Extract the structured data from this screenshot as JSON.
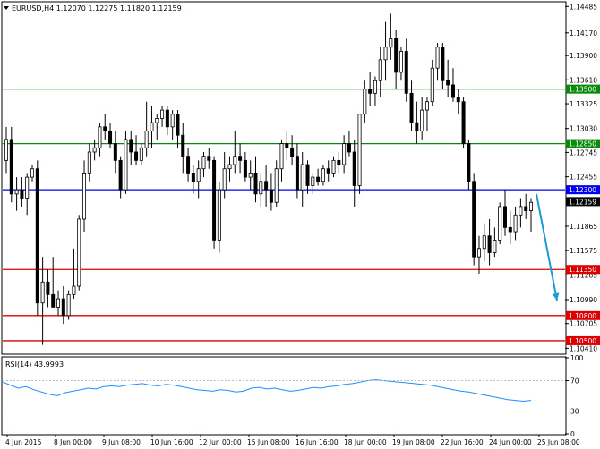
{
  "header": {
    "symbol_line": "EURUSD,H4  1.12070 1.12275 1.11820 1.12159"
  },
  "rsi_header": "RSI(14) 43.9993",
  "chart_data": {
    "type": "candlestick",
    "price_axis": {
      "ticks": [
        "1.14485",
        "1.14170",
        "1.13900",
        "1.13610",
        "1.13325",
        "1.13030",
        "1.12745",
        "1.12455",
        "1.11865",
        "1.11575",
        "1.11285",
        "1.10990",
        "1.10705",
        "1.10410"
      ],
      "ylim": [
        1.1035,
        1.1452
      ]
    },
    "levels": [
      {
        "value": 1.135,
        "label": "1.13500",
        "color": "#0a8a0a"
      },
      {
        "value": 1.1285,
        "label": "1.12850",
        "color": "#0a8a0a"
      },
      {
        "value": 1.123,
        "label": "1.12300",
        "color": "#0000ee"
      },
      {
        "value": 1.1135,
        "label": "1.11350",
        "color": "#dd0000"
      },
      {
        "value": 1.108,
        "label": "1.10800",
        "color": "#dd0000"
      },
      {
        "value": 1.105,
        "label": "1.10500",
        "color": "#dd0000"
      }
    ],
    "current_price": {
      "value": 1.12159,
      "label": "1.12159",
      "color": "#000000"
    },
    "forecast_arrow": {
      "from": 1.1225,
      "to": 1.1098,
      "color": "#1a9ad6"
    },
    "x_labels": [
      "4 Jun 2015",
      "8 Jun 00:00",
      "9 Jun 08:00",
      "10 Jun 16:00",
      "12 Jun 00:00",
      "15 Jun 08:00",
      "16 Jun 16:00",
      "18 Jun 00:00",
      "19 Jun 08:00",
      "22 Jun 16:00",
      "24 Jun 00:00",
      "25 Jun 08:00"
    ],
    "candles": [
      [
        1.1265,
        1.1305,
        1.125,
        1.129
      ],
      [
        1.129,
        1.1305,
        1.1215,
        1.1225
      ],
      [
        1.1225,
        1.1245,
        1.1205,
        1.123
      ],
      [
        1.123,
        1.1245,
        1.121,
        1.122
      ],
      [
        1.122,
        1.125,
        1.12,
        1.1245
      ],
      [
        1.1245,
        1.126,
        1.124,
        1.1255
      ],
      [
        1.1255,
        1.1265,
        1.108,
        1.1095
      ],
      [
        1.1095,
        1.115,
        1.1045,
        1.112
      ],
      [
        1.112,
        1.1135,
        1.109,
        1.1105
      ],
      [
        1.1105,
        1.115,
        1.109,
        1.109
      ],
      [
        1.109,
        1.111,
        1.108,
        1.11
      ],
      [
        1.11,
        1.1115,
        1.107,
        1.108
      ],
      [
        1.108,
        1.111,
        1.1075,
        1.1105
      ],
      [
        1.1105,
        1.116,
        1.11,
        1.1115
      ],
      [
        1.1115,
        1.12,
        1.111,
        1.1195
      ],
      [
        1.1195,
        1.1265,
        1.118,
        1.125
      ],
      [
        1.125,
        1.1285,
        1.124,
        1.1275
      ],
      [
        1.1275,
        1.129,
        1.1265,
        1.128
      ],
      [
        1.128,
        1.131,
        1.127,
        1.1305
      ],
      [
        1.1305,
        1.132,
        1.129,
        1.13
      ],
      [
        1.13,
        1.131,
        1.128,
        1.1285
      ],
      [
        1.1285,
        1.13,
        1.125,
        1.1265
      ],
      [
        1.1265,
        1.127,
        1.122,
        1.123
      ],
      [
        1.123,
        1.13,
        1.1225,
        1.129
      ],
      [
        1.129,
        1.13,
        1.126,
        1.1275
      ],
      [
        1.1275,
        1.1295,
        1.126,
        1.1265
      ],
      [
        1.1265,
        1.1285,
        1.126,
        1.128
      ],
      [
        1.128,
        1.1335,
        1.127,
        1.13
      ],
      [
        1.13,
        1.133,
        1.128,
        1.131
      ],
      [
        1.131,
        1.132,
        1.129,
        1.1315
      ],
      [
        1.1315,
        1.133,
        1.1305,
        1.1325
      ],
      [
        1.1325,
        1.133,
        1.1295,
        1.1305
      ],
      [
        1.1305,
        1.1325,
        1.129,
        1.132
      ],
      [
        1.132,
        1.1325,
        1.128,
        1.1295
      ],
      [
        1.1295,
        1.131,
        1.125,
        1.127
      ],
      [
        1.127,
        1.128,
        1.124,
        1.125
      ],
      [
        1.125,
        1.126,
        1.1225,
        1.124
      ],
      [
        1.124,
        1.1265,
        1.122,
        1.1255
      ],
      [
        1.1255,
        1.1275,
        1.1245,
        1.127
      ],
      [
        1.127,
        1.128,
        1.1255,
        1.1265
      ],
      [
        1.1265,
        1.127,
        1.116,
        1.117
      ],
      [
        1.117,
        1.124,
        1.1155,
        1.123
      ],
      [
        1.123,
        1.1275,
        1.122,
        1.1255
      ],
      [
        1.1255,
        1.127,
        1.124,
        1.126
      ],
      [
        1.126,
        1.13,
        1.125,
        1.127
      ],
      [
        1.127,
        1.1285,
        1.125,
        1.1265
      ],
      [
        1.1265,
        1.1275,
        1.124,
        1.1245
      ],
      [
        1.1245,
        1.1265,
        1.123,
        1.125
      ],
      [
        1.125,
        1.127,
        1.1215,
        1.1225
      ],
      [
        1.1225,
        1.125,
        1.121,
        1.124
      ],
      [
        1.124,
        1.126,
        1.121,
        1.123
      ],
      [
        1.123,
        1.125,
        1.1205,
        1.1215
      ],
      [
        1.1215,
        1.1265,
        1.121,
        1.1255
      ],
      [
        1.1255,
        1.129,
        1.124,
        1.1285
      ],
      [
        1.1285,
        1.13,
        1.1265,
        1.128
      ],
      [
        1.128,
        1.1295,
        1.126,
        1.127
      ],
      [
        1.127,
        1.1285,
        1.122,
        1.123
      ],
      [
        1.123,
        1.1275,
        1.121,
        1.126
      ],
      [
        1.126,
        1.1265,
        1.1225,
        1.1235
      ],
      [
        1.1235,
        1.125,
        1.1225,
        1.1245
      ],
      [
        1.1245,
        1.1255,
        1.1235,
        1.124
      ],
      [
        1.124,
        1.126,
        1.1235,
        1.1255
      ],
      [
        1.1255,
        1.1265,
        1.124,
        1.125
      ],
      [
        1.125,
        1.127,
        1.1245,
        1.1265
      ],
      [
        1.1265,
        1.1275,
        1.125,
        1.126
      ],
      [
        1.126,
        1.1295,
        1.125,
        1.1285
      ],
      [
        1.1285,
        1.13,
        1.127,
        1.1275
      ],
      [
        1.1275,
        1.129,
        1.121,
        1.1235
      ],
      [
        1.1235,
        1.132,
        1.1225,
        1.132
      ],
      [
        1.132,
        1.136,
        1.131,
        1.135
      ],
      [
        1.135,
        1.137,
        1.133,
        1.1345
      ],
      [
        1.1345,
        1.1365,
        1.133,
        1.136
      ],
      [
        1.136,
        1.14,
        1.134,
        1.1385
      ],
      [
        1.1385,
        1.143,
        1.136,
        1.14
      ],
      [
        1.14,
        1.144,
        1.1385,
        1.141
      ],
      [
        1.141,
        1.142,
        1.135,
        1.137
      ],
      [
        1.137,
        1.14,
        1.136,
        1.1395
      ],
      [
        1.1395,
        1.141,
        1.1335,
        1.1345
      ],
      [
        1.1345,
        1.136,
        1.13,
        1.131
      ],
      [
        1.131,
        1.1335,
        1.1285,
        1.13
      ],
      [
        1.13,
        1.134,
        1.129,
        1.1325
      ],
      [
        1.1325,
        1.134,
        1.13,
        1.1335
      ],
      [
        1.1335,
        1.1385,
        1.133,
        1.1375
      ],
      [
        1.1375,
        1.1405,
        1.136,
        1.14
      ],
      [
        1.14,
        1.1405,
        1.135,
        1.136
      ],
      [
        1.136,
        1.1385,
        1.134,
        1.1355
      ],
      [
        1.1355,
        1.1375,
        1.1335,
        1.134
      ],
      [
        1.134,
        1.135,
        1.132,
        1.1335
      ],
      [
        1.1335,
        1.134,
        1.128,
        1.1285
      ],
      [
        1.1285,
        1.129,
        1.123,
        1.124
      ],
      [
        1.124,
        1.125,
        1.114,
        1.115
      ],
      [
        1.115,
        1.1175,
        1.113,
        1.116
      ],
      [
        1.116,
        1.119,
        1.1145,
        1.1175
      ],
      [
        1.1175,
        1.1195,
        1.114,
        1.1155
      ],
      [
        1.1155,
        1.1185,
        1.115,
        1.117
      ],
      [
        1.117,
        1.1215,
        1.1165,
        1.121
      ],
      [
        1.121,
        1.123,
        1.1175,
        1.1185
      ],
      [
        1.1185,
        1.1205,
        1.1165,
        1.118
      ],
      [
        1.118,
        1.121,
        1.117,
        1.12
      ],
      [
        1.12,
        1.122,
        1.1185,
        1.121
      ],
      [
        1.121,
        1.1225,
        1.1195,
        1.1205
      ],
      [
        1.1205,
        1.122,
        1.118,
        1.1215
      ]
    ],
    "rsi": {
      "ticks": [
        "100",
        "70",
        "30",
        "0"
      ],
      "ylim": [
        0,
        100
      ],
      "values": [
        68,
        64,
        60,
        62,
        58,
        55,
        52,
        50,
        54,
        56,
        58,
        60,
        59,
        62,
        63,
        62,
        64,
        65,
        66,
        64,
        63,
        65,
        64,
        62,
        60,
        58,
        57,
        56,
        58,
        57,
        55,
        56,
        60,
        61,
        59,
        60,
        58,
        56,
        57,
        59,
        61,
        60,
        62,
        63,
        65,
        66,
        68,
        70,
        71,
        70,
        69,
        68,
        67,
        66,
        65,
        64,
        62,
        60,
        58,
        56,
        55,
        53,
        51,
        49,
        47,
        45,
        44,
        43,
        44
      ]
    }
  }
}
